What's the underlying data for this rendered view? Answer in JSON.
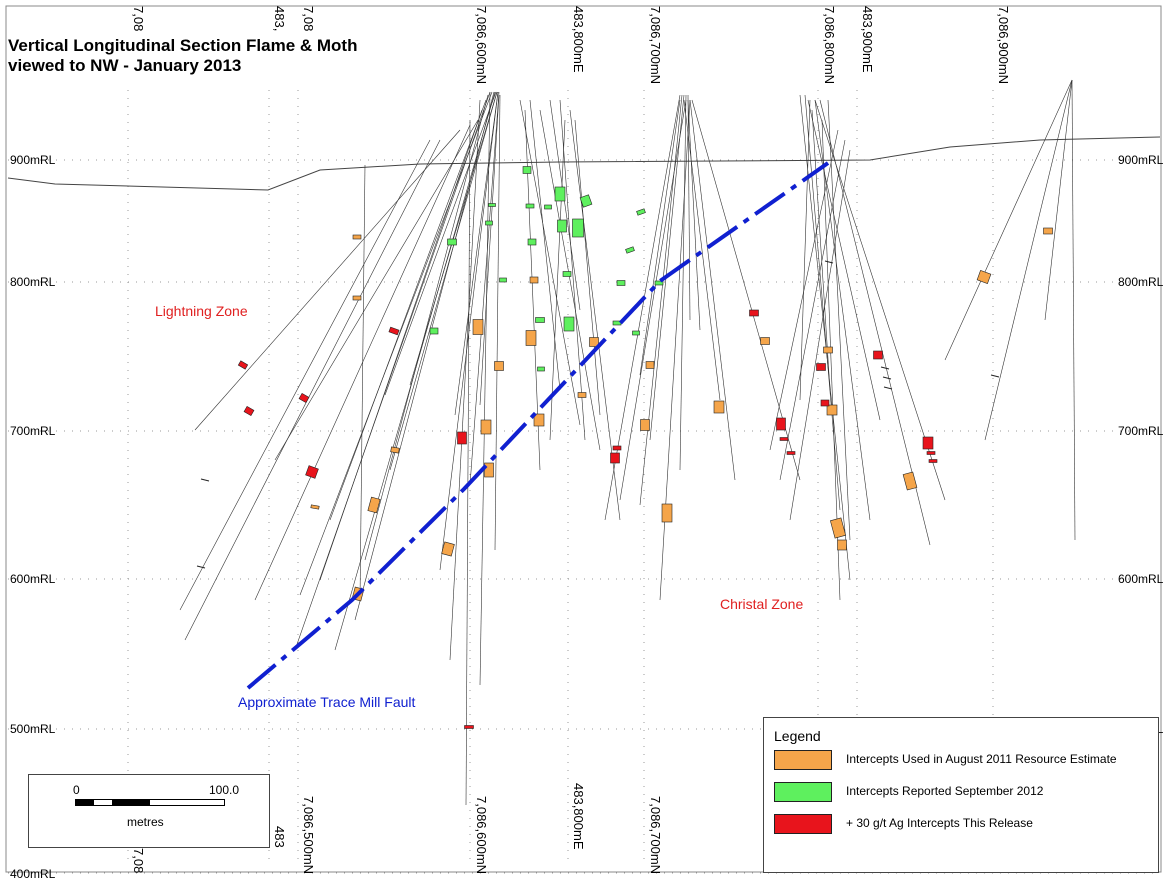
{
  "title_lines": [
    "Vertical Longitudinal Section Flame & Moth",
    " viewed to NW - January 2013"
  ],
  "elevation_labels": [
    "900mRL",
    "800mRL",
    "700mRL",
    "600mRL",
    "500mRL",
    "400mRL"
  ],
  "top_grid_labels": [
    "7,08",
    "483,",
    "7,08",
    "7,086,600mN",
    "483,800mE",
    "7,086,700mN",
    "7,086,800mN",
    "483,900mE",
    "7,086,900mN"
  ],
  "bottom_grid_labels": [
    "7,08",
    "483",
    "7,086,500mN",
    "7,086,600mN",
    "483,800mE",
    "7,086,700mN"
  ],
  "zones": {
    "lightning": "Lightning Zone",
    "christal": "Christal Zone",
    "fault": "Approximate Trace Mill Fault"
  },
  "colors": {
    "orange": "#f5a54a",
    "green": "#5ef05e",
    "red": "#e8141c",
    "fault": "#1020d0",
    "zone_text": "#e02020"
  },
  "legend": {
    "title": "Legend",
    "items": [
      {
        "label": "Intercepts Used in August 2011 Resource Estimate",
        "color": "#f5a54a"
      },
      {
        "label": "Intercepts Reported September 2012",
        "color": "#5ef05e"
      },
      {
        "label": "+ 30 g/t Ag Intercepts This Release",
        "color": "#e8141c"
      }
    ]
  },
  "scale": {
    "start": "0",
    "end": "100.0",
    "unit": "metres"
  }
}
